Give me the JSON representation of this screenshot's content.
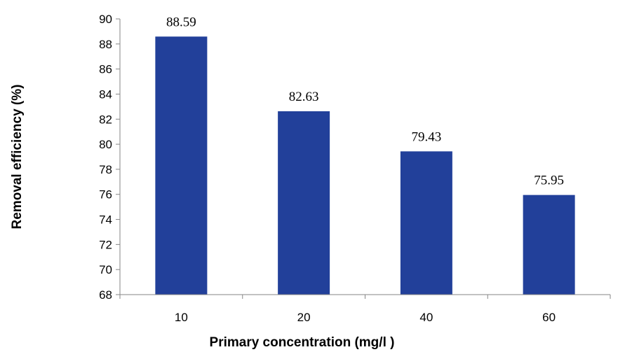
{
  "chart_data": {
    "type": "bar",
    "categories": [
      "10",
      "20",
      "40",
      "60"
    ],
    "values": [
      88.59,
      82.63,
      79.43,
      75.95
    ],
    "data_labels": [
      "88.59",
      "82.63",
      "79.43",
      "75.95"
    ],
    "title": "",
    "xlabel": "Primary concentration (mg/l )",
    "ylabel": "Removal efficiency (%)",
    "ylim": [
      68,
      90
    ],
    "yticks": [
      "68",
      "70",
      "72",
      "74",
      "76",
      "78",
      "80",
      "82",
      "84",
      "86",
      "88",
      "90"
    ],
    "grid": false,
    "legend": "none",
    "bar_color": "#22409A",
    "axis_color": "#868686"
  }
}
